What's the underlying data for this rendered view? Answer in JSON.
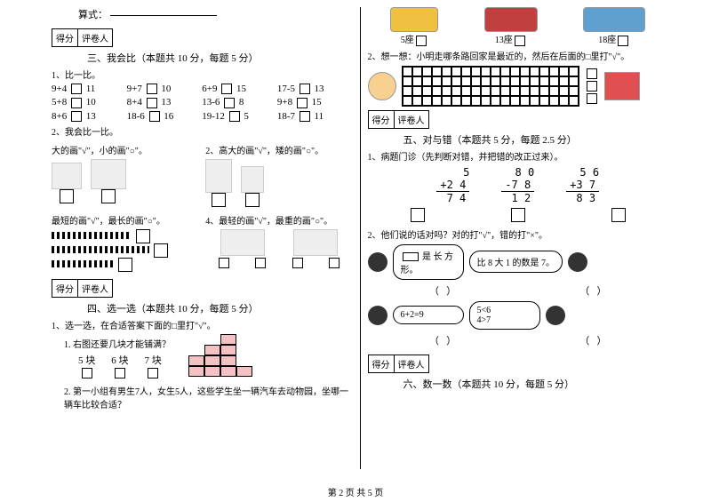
{
  "left": {
    "topline_label": "算式：",
    "score_labels": [
      "得分",
      "评卷人"
    ],
    "sec3_title": "三、我会比（本题共 10 分，每题 5 分）",
    "q3_1": "1、比一比。",
    "math_rows": [
      [
        "9+4",
        "11",
        "9+7",
        "10",
        "6+9",
        "15",
        "17-5",
        "13"
      ],
      [
        "5+8",
        "10",
        "8+4",
        "13",
        "13-6",
        "8",
        "9+8",
        "15"
      ],
      [
        "8+6",
        "13",
        "18-6",
        "16",
        "19-12",
        "5",
        "18-7",
        "11"
      ]
    ],
    "q3_2": "2、我会比一比。",
    "q3_2a": "大的画\"√\"，小的画\"○\"。",
    "q3_2b": "2、高大的画\"√\"，矮的画\"○\"。",
    "q3_2c": "最短的画\"√\"，最长的画\"○\"。",
    "q3_2d": "4、最轻的画\"√\"，最重的画\"○\"。",
    "sec4_title": "四、选一选（本题共 10 分，每题 5 分）",
    "q4_1": "1、选一选，在合适答案下面的□里打\"√\"。",
    "q4_1_1": "1. 右图还要几块才能铺满？",
    "q4_1_opts": [
      "5 块",
      "6 块",
      "7 块"
    ],
    "q4_1_2": "2. 第一小组有男生7人，女生5人，这些学生坐一辆汽车去动物园，坐哪一辆车比较合适？"
  },
  "right": {
    "cars": [
      "5座",
      "13座",
      "18座"
    ],
    "q_car": "2、想一想：小明走哪条路回家是最近的，然后在后面的□里打\"√\"。",
    "score_labels": [
      "得分",
      "评卷人"
    ],
    "sec5_title": "五、对与错（本题共 5 分，每题 2.5 分）",
    "q5_1": "1、病题门诊（先判断对错，并把错的改正过来）。",
    "vmath": [
      {
        "a": "5",
        "b": "+2 4",
        "r": "7 4"
      },
      {
        "a": "8 0",
        "b": "-7 8",
        "r": "1 2"
      },
      {
        "a": "5 6",
        "b": "+3 7",
        "r": "8 3"
      }
    ],
    "q5_2": "2、他们说的话对吗？对的打\"√\"，错的打\"×\"。",
    "bubbles": {
      "b1a": "是 长 方",
      "b1b": "形。",
      "b2": "比 8 大 1 的数是 7。",
      "b3": "6+2=9",
      "b4a": "5<6",
      "b4b": "4>7"
    },
    "sec6_title": "六、数一数（本题共 10 分，每题 5 分）"
  },
  "footer": "第 2 页  共 5 页"
}
